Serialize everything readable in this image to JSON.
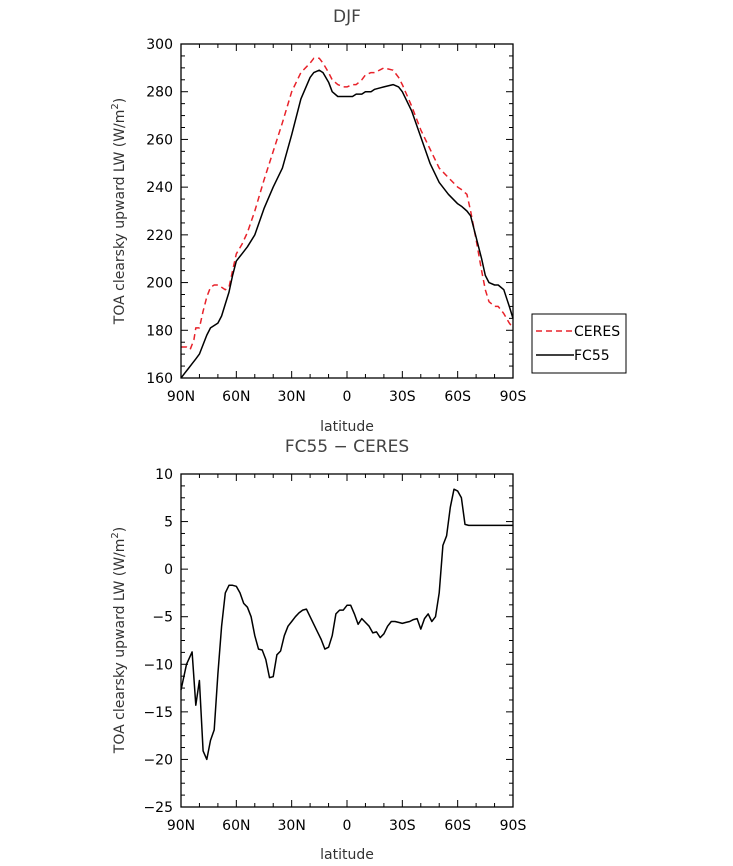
{
  "chart_data": [
    {
      "type": "line",
      "title": "DJF",
      "xlabel": "latitude",
      "ylabel": "TOA clearsky upward LW (W/m²)",
      "ylabel_main": "TOA clearsky upward LW (W/m",
      "ylabel_sup": "2",
      "ylabel_end": ")",
      "xlim": [
        90,
        -90
      ],
      "ylim": [
        160,
        300
      ],
      "xticks": [
        90,
        60,
        30,
        0,
        -30,
        -60,
        -90
      ],
      "xtick_labels": [
        "90N",
        "60N",
        "30N",
        "0",
        "30S",
        "60S",
        "90S"
      ],
      "yticks": [
        160,
        180,
        200,
        220,
        240,
        260,
        280,
        300
      ],
      "ytick_labels": [
        "160",
        "180",
        "200",
        "220",
        "240",
        "260",
        "280",
        "300"
      ],
      "legend": "outside-right",
      "grid": false,
      "series": [
        {
          "name": "CERES",
          "color": "#e8222a",
          "dash": true,
          "x": [
            90,
            87,
            85,
            83,
            82,
            80,
            78,
            76,
            74,
            72,
            70,
            68,
            66,
            64,
            62,
            60,
            57,
            54,
            50,
            45,
            40,
            35,
            30,
            25,
            20,
            18,
            15,
            13,
            10,
            8,
            5,
            2,
            0,
            -3,
            -5,
            -8,
            -10,
            -13,
            -15,
            -20,
            -25,
            -28,
            -30,
            -35,
            -40,
            -45,
            -50,
            -55,
            -60,
            -62,
            -65,
            -67,
            -70,
            -73,
            -75,
            -77,
            -80,
            -82,
            -85,
            -88,
            -90
          ],
          "y": [
            173,
            173,
            172,
            176,
            181,
            181,
            188,
            194,
            198,
            199,
            199,
            198,
            197,
            198,
            205,
            212,
            216,
            221,
            230,
            243,
            255,
            267,
            280,
            288,
            292,
            294,
            294,
            292,
            288,
            285,
            283,
            282,
            282,
            283,
            283,
            285,
            287,
            288,
            288,
            290,
            289,
            286,
            283,
            274,
            264,
            256,
            248,
            244,
            240,
            239,
            237,
            230,
            218,
            205,
            197,
            192,
            190,
            190,
            187,
            183,
            181
          ]
        },
        {
          "name": "FC55",
          "color": "#000000",
          "dash": false,
          "x": [
            90,
            88,
            86,
            84,
            82,
            80,
            78,
            76,
            74,
            72,
            70,
            68,
            66,
            64,
            62,
            60,
            57,
            54,
            50,
            45,
            40,
            35,
            30,
            25,
            20,
            18,
            15,
            13,
            10,
            8,
            5,
            2,
            0,
            -3,
            -5,
            -8,
            -10,
            -13,
            -15,
            -20,
            -25,
            -28,
            -30,
            -35,
            -40,
            -45,
            -50,
            -55,
            -60,
            -62,
            -65,
            -67,
            -70,
            -73,
            -75,
            -77,
            -80,
            -82,
            -85,
            -88,
            -90
          ],
          "y": [
            160,
            162,
            164,
            166,
            168,
            170,
            174,
            178,
            181,
            182,
            183,
            186,
            191,
            196,
            203,
            209,
            212,
            215,
            220,
            231,
            240,
            248,
            262,
            277,
            286,
            288,
            289,
            288,
            284,
            280,
            278,
            278,
            278,
            278,
            279,
            279,
            280,
            280,
            281,
            282,
            283,
            282,
            280,
            272,
            261,
            250,
            242,
            237,
            233,
            232,
            230,
            228,
            219,
            210,
            203,
            200,
            199,
            199,
            197,
            190,
            185
          ]
        }
      ]
    },
    {
      "type": "line",
      "title": "FC55 − CERES",
      "xlabel": "latitude",
      "ylabel": "TOA clearsky upward LW (W/m²)",
      "ylabel_main": "TOA clearsky upward LW (W/m",
      "ylabel_sup": "2",
      "ylabel_end": ")",
      "xlim": [
        90,
        -90
      ],
      "ylim": [
        -25,
        10
      ],
      "xticks": [
        90,
        60,
        30,
        0,
        -30,
        -60,
        -90
      ],
      "xtick_labels": [
        "90N",
        "60N",
        "30N",
        "0",
        "30S",
        "60S",
        "90S"
      ],
      "yticks": [
        -25,
        -20,
        -15,
        -10,
        -5,
        0,
        5,
        10
      ],
      "ytick_labels": [
        "−25",
        "−20",
        "−15",
        "−10",
        "−5",
        "0",
        "5",
        "10"
      ],
      "grid": false,
      "series": [
        {
          "color": "#000000",
          "dash": false,
          "x": [
            90,
            87,
            84,
            82,
            80,
            78,
            76,
            74,
            72,
            70,
            68,
            66,
            64,
            62,
            60,
            58,
            56,
            54,
            52,
            50,
            48,
            46,
            44,
            42,
            40,
            38,
            36,
            34,
            32,
            30,
            28,
            26,
            24,
            22,
            20,
            18,
            16,
            14,
            12,
            10,
            8,
            6,
            4,
            2,
            0,
            -2,
            -4,
            -6,
            -8,
            -10,
            -12,
            -14,
            -16,
            -18,
            -20,
            -22,
            -24,
            -26,
            -28,
            -30,
            -32,
            -34,
            -36,
            -38,
            -40,
            -42,
            -44,
            -46,
            -48,
            -50,
            -52,
            -54,
            -56,
            -58,
            -60,
            -62,
            -64,
            -66,
            -68,
            -70,
            -72,
            -74,
            -76,
            -78,
            -80,
            -82,
            -84,
            -86,
            -88,
            -90
          ],
          "y": [
            -12.7,
            -10.0,
            -8.7,
            -14.3,
            -11.7,
            -19.1,
            -20.0,
            -18.0,
            -16.9,
            -11.0,
            -6.0,
            -2.5,
            -1.7,
            -1.7,
            -1.8,
            -2.5,
            -3.6,
            -4.0,
            -5.0,
            -7.0,
            -8.4,
            -8.5,
            -9.5,
            -11.4,
            -11.3,
            -9.0,
            -8.6,
            -7.0,
            -6.0,
            -5.5,
            -5.0,
            -4.6,
            -4.3,
            -4.2,
            -5.0,
            -5.8,
            -6.6,
            -7.4,
            -8.4,
            -8.2,
            -7.0,
            -4.7,
            -4.3,
            -4.3,
            -3.8,
            -3.8,
            -4.7,
            -5.8,
            -5.2,
            -5.6,
            -6.0,
            -6.7,
            -6.6,
            -7.2,
            -6.8,
            -6.0,
            -5.5,
            -5.5,
            -5.6,
            -5.7,
            -5.6,
            -5.5,
            -5.3,
            -5.2,
            -6.3,
            -5.2,
            -4.7,
            -5.5,
            -5.0,
            -2.5,
            2.5,
            3.5,
            6.5,
            8.4,
            8.2,
            7.5,
            4.7,
            4.6,
            4.6,
            4.6,
            4.6,
            4.6,
            4.6,
            4.6,
            4.6,
            4.6,
            4.6,
            4.6,
            4.6,
            4.6
          ]
        }
      ]
    }
  ]
}
